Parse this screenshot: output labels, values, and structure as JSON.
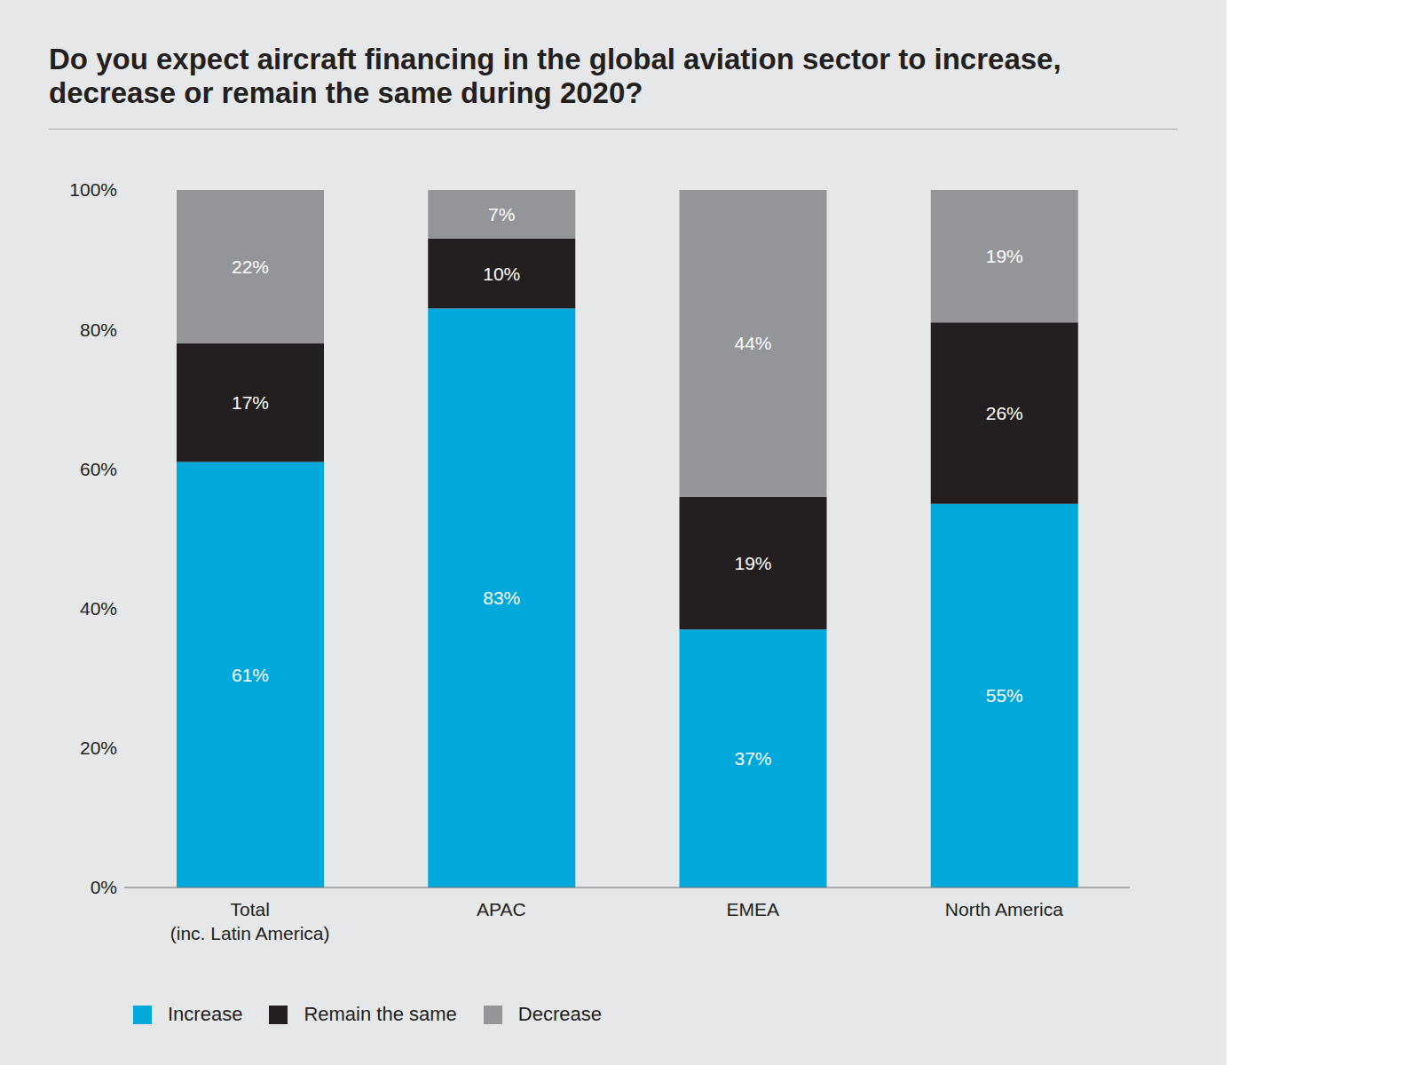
{
  "chart_data": {
    "type": "bar",
    "title": "Do you expect aircraft financing in the global aviation sector to increase, decrease or remain the same during 2020?",
    "categories": [
      "Total\n(inc. Latin America)",
      "APAC",
      "EMEA",
      "North America"
    ],
    "series": [
      {
        "name": "Increase",
        "color": "#00a8db",
        "values": [
          61,
          83,
          37,
          55
        ],
        "value_labels": [
          "61%",
          "83%",
          "37%",
          "55%"
        ]
      },
      {
        "name": "Remain the same",
        "color": "#231f20",
        "values": [
          17,
          10,
          19,
          26
        ],
        "value_labels": [
          "17%",
          "10%",
          "19%",
          "26%"
        ]
      },
      {
        "name": "Decrease",
        "color": "#939598",
        "values": [
          22,
          7,
          44,
          19
        ],
        "value_labels": [
          "22%",
          "7%",
          "44%",
          "19%"
        ]
      }
    ],
    "ylim": [
      0,
      100
    ],
    "yticks": [
      {
        "value": 0,
        "label": "0%"
      },
      {
        "value": 20,
        "label": "20%"
      },
      {
        "value": 40,
        "label": "40%"
      },
      {
        "value": 60,
        "label": "60%"
      },
      {
        "value": 80,
        "label": "80%"
      },
      {
        "value": 100,
        "label": "100%"
      }
    ],
    "stacked": true,
    "data_labels": true,
    "grid": false,
    "legend": "bottom"
  }
}
